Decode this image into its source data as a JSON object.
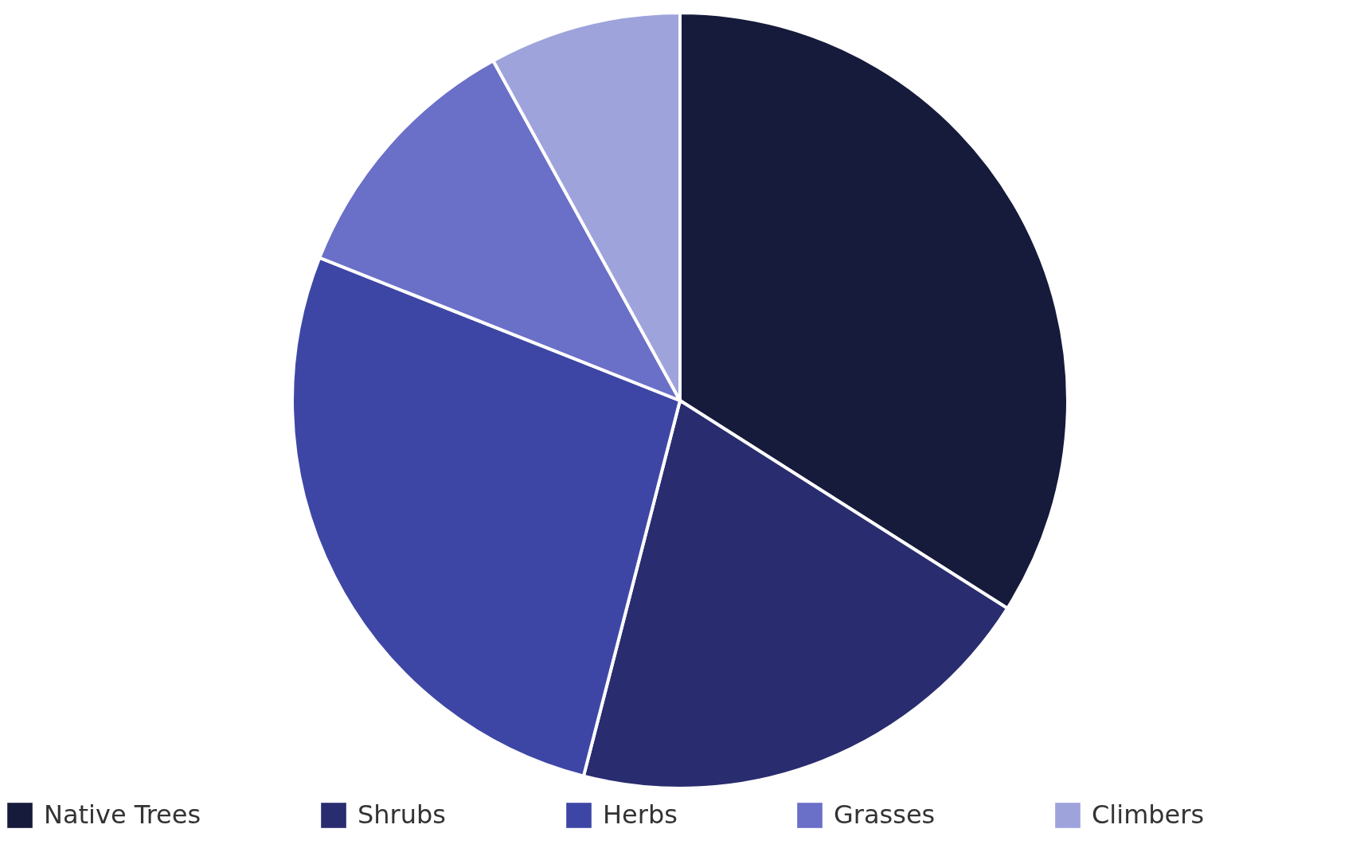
{
  "chart_data": {
    "type": "pie",
    "categories": [
      "Native Trees",
      "Shrubs",
      "Herbs",
      "Grasses",
      "Climbers"
    ],
    "values": [
      34,
      20,
      27,
      11,
      8
    ],
    "colors": [
      "#161a3b",
      "#292c6e",
      "#3e46a5",
      "#6a6fc8",
      "#9ea3dc"
    ],
    "legend": "bottom"
  }
}
